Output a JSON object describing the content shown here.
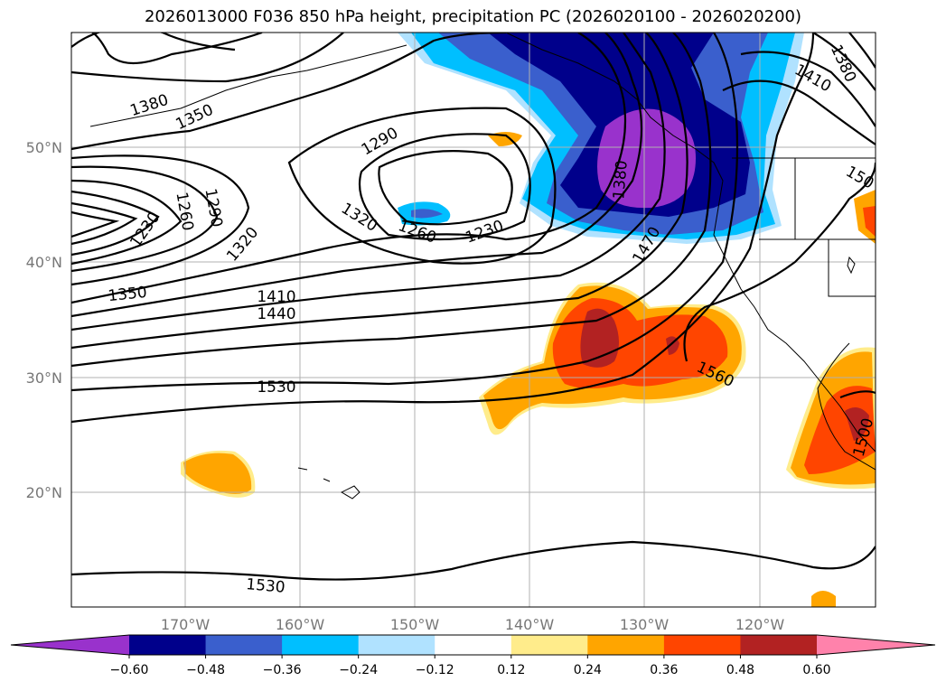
{
  "title": "2026013000 F036 850 hPa height, precipitation PC (2026020100 - 2026020200)",
  "lat_ticks": [
    "50°N",
    "40°N",
    "30°N",
    "20°N"
  ],
  "lon_ticks": [
    "170°W",
    "160°W",
    "150°W",
    "140°W",
    "130°W",
    "120°W"
  ],
  "contour_labels": {
    "l1380a": "1380",
    "l1350a": "1350",
    "l1290a": "1290",
    "l1320a": "1320",
    "l1260a": "1260",
    "l1230a": "1230",
    "l1230b": "1230",
    "l1260b": "1260",
    "l1290b": "1290",
    "l1320b": "1320",
    "l1350b": "1350",
    "l1410a": "1410",
    "l1440a": "1440",
    "l1530a": "1530",
    "l1530b": "1530",
    "l1470a": "1470",
    "l1380b": "1380",
    "l1560a": "1560",
    "l1410b": "1410",
    "l1380c": "1380",
    "l1500a": "150",
    "l1500b": "1500"
  },
  "colorbar": {
    "ticks": [
      "−0.60",
      "−0.48",
      "−0.36",
      "−0.24",
      "−0.12",
      "0.12",
      "0.24",
      "0.36",
      "0.48",
      "0.60"
    ],
    "colors": [
      "#9932cc",
      "#00008b",
      "#3a5fcd",
      "#00bfff",
      "#b0e2ff",
      "#ffffff",
      "#ffec8b",
      "#ffa500",
      "#ff4500",
      "#b22222",
      "#ff82ab"
    ]
  }
}
